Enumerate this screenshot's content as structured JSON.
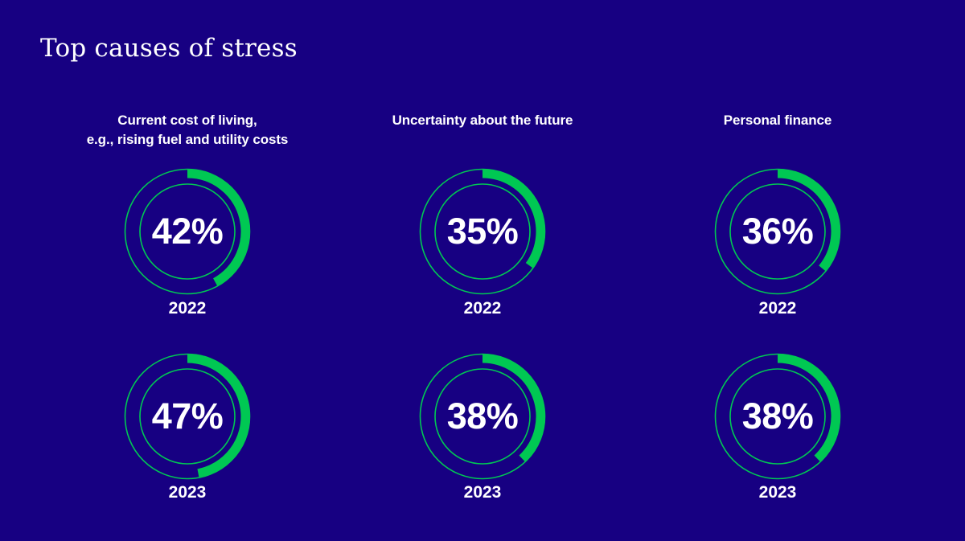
{
  "title": "Top causes of stress",
  "colors": {
    "background": "#170082",
    "accent": "#00c853",
    "text": "#ffffff"
  },
  "chart_data": {
    "type": "donut",
    "years": [
      "2022",
      "2023"
    ],
    "series": [
      {
        "name": "Current cost of living, e.g., rising fuel and utility costs",
        "label_lines": [
          "Current cost of living,",
          "e.g., rising fuel and utility costs"
        ],
        "values": [
          42,
          47
        ],
        "labels": [
          "42%",
          "47%"
        ]
      },
      {
        "name": "Uncertainty about the future",
        "label_lines": [
          "Uncertainty about the future"
        ],
        "values": [
          35,
          38
        ],
        "labels": [
          "35%",
          "38%"
        ]
      },
      {
        "name": "Personal finance",
        "label_lines": [
          "Personal finance"
        ],
        "values": [
          36,
          38
        ],
        "labels": [
          "36%",
          "38%"
        ]
      }
    ],
    "unit": "%",
    "max": 100
  }
}
